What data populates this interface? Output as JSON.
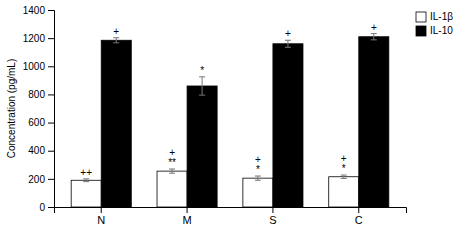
{
  "chart_data": {
    "type": "bar",
    "categories": [
      "N",
      "M",
      "S",
      "C"
    ],
    "series": [
      {
        "name": "IL-1β",
        "color": "#ffffff",
        "values": [
          190,
          255,
          205,
          215
        ],
        "errors": [
          10,
          15,
          15,
          12
        ],
        "annotations": [
          [
            "++"
          ],
          [
            "**",
            "+"
          ],
          [
            "*",
            "+"
          ],
          [
            "*",
            "+"
          ]
        ]
      },
      {
        "name": "IL-10",
        "color": "#000000",
        "values": [
          1185,
          860,
          1160,
          1210
        ],
        "errors": [
          18,
          65,
          25,
          22
        ],
        "annotations": [
          [
            "+"
          ],
          [
            "*"
          ],
          [
            "+"
          ],
          [
            "+"
          ]
        ]
      }
    ],
    "ylabel": "Concentration (pg/mL)",
    "ylim": [
      0,
      1400
    ],
    "yticks": [
      0,
      200,
      400,
      600,
      800,
      1000,
      1200,
      1400
    ],
    "legend": "upper right"
  }
}
